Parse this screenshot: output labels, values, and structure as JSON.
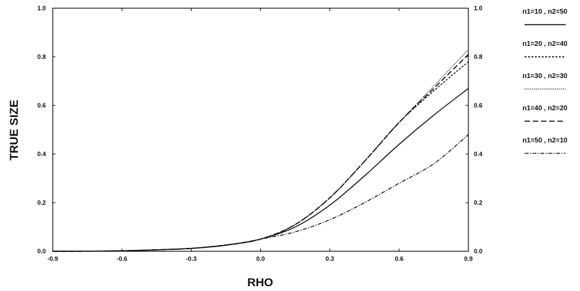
{
  "chart_data": {
    "type": "line",
    "xlabel": "RHO",
    "ylabel": "TRUE SIZE",
    "xlim": [
      -0.9,
      0.9
    ],
    "ylim": [
      0.0,
      1.0
    ],
    "x_ticks": [
      "-0.9",
      "-0.6",
      "-0.3",
      "0.0",
      "0.3",
      "0.6",
      "0.9"
    ],
    "y_ticks": [
      "0.0",
      "0.2",
      "0.4",
      "0.6",
      "0.8",
      "1.0"
    ],
    "right_y_ticks": [
      "0.0",
      "0.2",
      "0.4",
      "0.6",
      "0.8",
      "1.0"
    ],
    "grid": false,
    "legend_position": "right, outside plot",
    "x": [
      -0.9,
      -0.75,
      -0.6,
      -0.45,
      -0.3,
      -0.15,
      0.0,
      0.15,
      0.3,
      0.45,
      0.6,
      0.75,
      0.9
    ],
    "series": [
      {
        "name": "n1=10 , n2=50",
        "dash": "solid",
        "values": [
          0.0,
          0.0005,
          0.002,
          0.006,
          0.012,
          0.025,
          0.05,
          0.1,
          0.19,
          0.31,
          0.44,
          0.56,
          0.67
        ]
      },
      {
        "name": "n1=20 , n2=40",
        "dash": "dashed",
        "values": [
          0.0,
          0.0005,
          0.002,
          0.006,
          0.012,
          0.026,
          0.05,
          0.11,
          0.22,
          0.37,
          0.53,
          0.66,
          0.78
        ]
      },
      {
        "name": "n1=30 , n2=30",
        "dash": "dotted",
        "values": [
          0.0,
          0.0005,
          0.002,
          0.006,
          0.012,
          0.026,
          0.05,
          0.11,
          0.22,
          0.37,
          0.53,
          0.68,
          0.83
        ]
      },
      {
        "name": "n1=40 , n2=20",
        "dash": "long-dashed",
        "values": [
          0.0,
          0.0005,
          0.002,
          0.006,
          0.012,
          0.026,
          0.05,
          0.11,
          0.22,
          0.37,
          0.53,
          0.67,
          0.81
        ]
      },
      {
        "name": "n1=50 , n2=10",
        "dash": "dash-dot",
        "values": [
          0.0,
          0.0005,
          0.002,
          0.006,
          0.012,
          0.025,
          0.05,
          0.08,
          0.13,
          0.2,
          0.28,
          0.36,
          0.48
        ]
      }
    ]
  }
}
